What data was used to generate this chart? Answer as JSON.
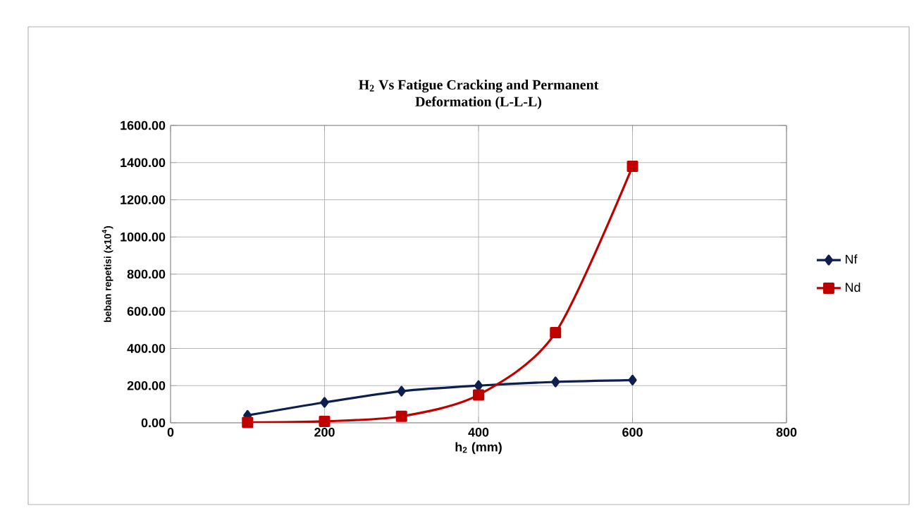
{
  "chart_data": {
    "type": "line",
    "title": "H$_{2}$ Vs Fatigue Cracking and Permanent Deformation (L-L-L)",
    "xlabel": "h$_{2}$ (mm)",
    "ylabel": "beban repetisi (x10$^{4}$)",
    "x": [
      100,
      200,
      300,
      400,
      500,
      600
    ],
    "series": [
      {
        "name": "Nf",
        "color": "#0d1f4f",
        "marker": "diamond",
        "values": [
          40,
          110,
          170,
          200,
          220,
          230
        ]
      },
      {
        "name": "Nd",
        "color": "#c00000",
        "marker": "square",
        "values": [
          2,
          8,
          35,
          150,
          485,
          1380
        ]
      }
    ],
    "xlim": [
      0,
      800
    ],
    "xticks": [
      0,
      200,
      400,
      600,
      800
    ],
    "ylim": [
      0,
      1600
    ],
    "yticks": [
      {
        "value": 0,
        "label": "0.00"
      },
      {
        "value": 200,
        "label": "200.00"
      },
      {
        "value": 400,
        "label": "400.00"
      },
      {
        "value": 600,
        "label": "600.00"
      },
      {
        "value": 800,
        "label": "800.00"
      },
      {
        "value": 1000,
        "label": "1000.00"
      },
      {
        "value": 1200,
        "label": "1200.00"
      },
      {
        "value": 1400,
        "label": "1400.00"
      },
      {
        "value": 1600,
        "label": "1600.00"
      }
    ],
    "grid": true,
    "legend": "right",
    "line_style": "solid"
  }
}
